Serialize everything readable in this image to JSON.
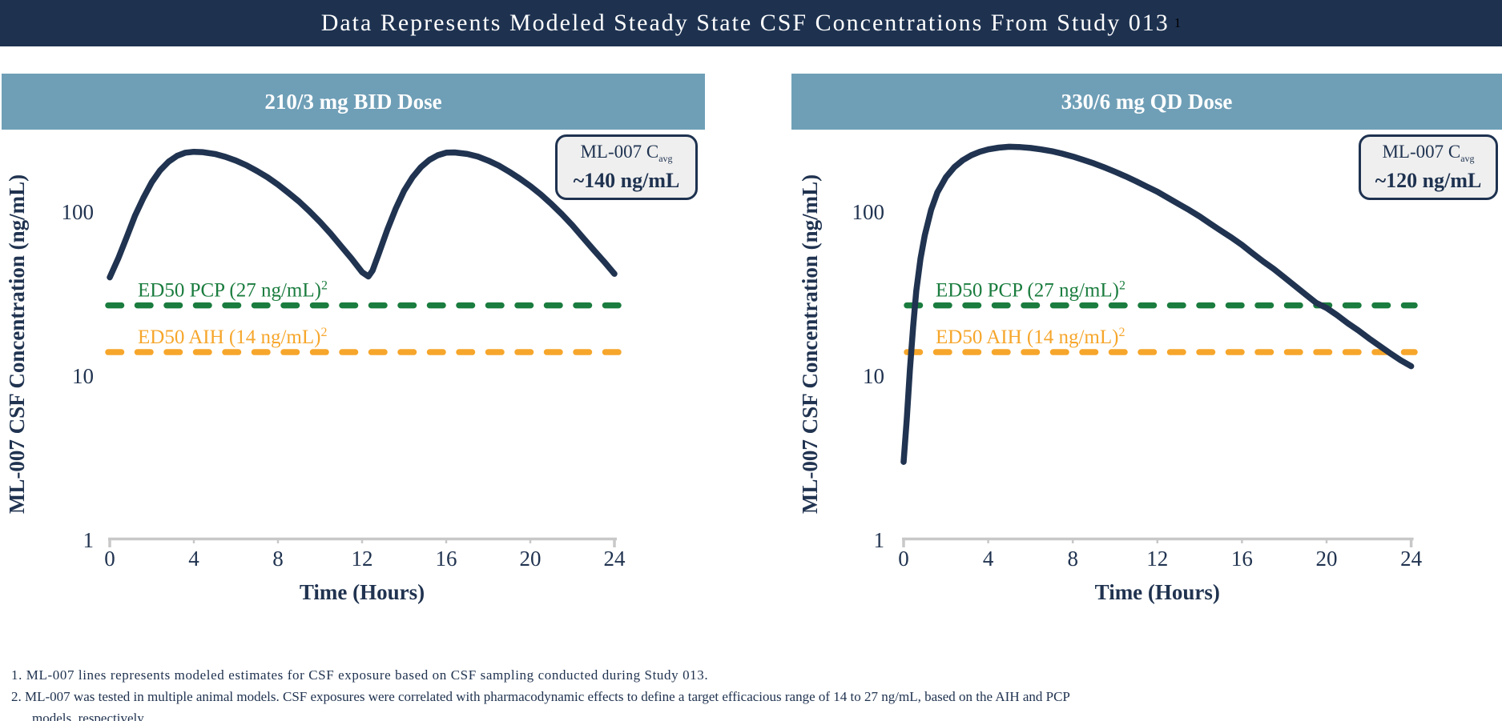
{
  "title": {
    "text": "Data Represents Modeled Steady State CSF Concentrations From Study 013",
    "superscript": "1"
  },
  "colors": {
    "navy": "#203350",
    "title_bar_bg": "#1e3250",
    "panel_header_bg": "#6f9fb7",
    "green": "#1a7c3e",
    "orange": "#f6a62b",
    "axis_gray": "#c8c8c8",
    "legend_bg": "#efefef",
    "white": "#ffffff"
  },
  "footnotes": {
    "note1": "1. ML-007 lines represents modeled estimates for CSF exposure based on CSF sampling conducted during Study 013.",
    "note2_line1": "2. ML-007 was tested in multiple animal models. CSF exposures were correlated with pharmacodynamic effects to define a target efficacious range of 14 to 27 ng/mL, based on the AIH and PCP",
    "note2_line2": "models, respectively."
  },
  "chart_data": [
    {
      "type": "line",
      "panel_title": "210/3 mg BID Dose",
      "x_label": "Time (Hours)",
      "y_label": "ML-007 CSF Concentration (ng/mL)",
      "x_ticks": [
        0,
        4,
        8,
        12,
        16,
        20,
        24
      ],
      "y_ticks": [
        100,
        10,
        1
      ],
      "y_scale": "log",
      "xlim": [
        0,
        24
      ],
      "ylim": [
        1,
        400
      ],
      "grid": false,
      "legend": {
        "line1_prefix": "ML-007 C",
        "line1_sub": "avg",
        "line2": "~140 ng/mL",
        "position": "top-right"
      },
      "cavg_ng_ml": 140,
      "thresholds": [
        {
          "label": "ED50 PCP (27 ng/mL)",
          "label_sup": "2",
          "value": 27,
          "color": "#1a7c3e"
        },
        {
          "label": "ED50 AIH (14 ng/mL)",
          "label_sup": "2",
          "value": 14,
          "color": "#f6a62b"
        }
      ],
      "series": [
        {
          "name": "ML-007 modeled CSF concentration",
          "color": "#203350",
          "points": [
            [
              0,
              40
            ],
            [
              0.4,
              52
            ],
            [
              0.8,
              70
            ],
            [
              1.2,
              95
            ],
            [
              1.6,
              122
            ],
            [
              2,
              152
            ],
            [
              2.4,
              180
            ],
            [
              2.8,
              203
            ],
            [
              3.2,
              220
            ],
            [
              3.6,
              230
            ],
            [
              4,
              233
            ],
            [
              4.4,
              232
            ],
            [
              5,
              226
            ],
            [
              5.5,
              217
            ],
            [
              6,
              206
            ],
            [
              6.5,
              193
            ],
            [
              7,
              178
            ],
            [
              7.5,
              163
            ],
            [
              8,
              147
            ],
            [
              8.5,
              131
            ],
            [
              9,
              116
            ],
            [
              9.5,
              101
            ],
            [
              10,
              87
            ],
            [
              10.5,
              74
            ],
            [
              11,
              62
            ],
            [
              11.5,
              52
            ],
            [
              12,
              43
            ],
            [
              12.3,
              40.5
            ],
            [
              12.5,
              44
            ],
            [
              12.8,
              56
            ],
            [
              13.2,
              78
            ],
            [
              13.6,
              105
            ],
            [
              14,
              135
            ],
            [
              14.4,
              163
            ],
            [
              14.8,
              188
            ],
            [
              15.2,
              208
            ],
            [
              15.6,
              222
            ],
            [
              16,
              230
            ],
            [
              16.4,
              231
            ],
            [
              17,
              226
            ],
            [
              17.5,
              218
            ],
            [
              18,
              206
            ],
            [
              18.5,
              192
            ],
            [
              19,
              176
            ],
            [
              19.5,
              160
            ],
            [
              20,
              144
            ],
            [
              20.5,
              128
            ],
            [
              21,
              112
            ],
            [
              21.5,
              97
            ],
            [
              22,
              83
            ],
            [
              22.5,
              70
            ],
            [
              23,
              59
            ],
            [
              23.5,
              50
            ],
            [
              24,
              42
            ]
          ]
        }
      ]
    },
    {
      "type": "line",
      "panel_title": "330/6 mg QD Dose",
      "x_label": "Time (Hours)",
      "y_label": "ML-007 CSF Concentration (ng/mL)",
      "x_ticks": [
        0,
        4,
        8,
        12,
        16,
        20,
        24
      ],
      "y_ticks": [
        100,
        10,
        1
      ],
      "y_scale": "log",
      "xlim": [
        0,
        24
      ],
      "ylim": [
        1,
        400
      ],
      "grid": false,
      "legend": {
        "line1_prefix": "ML-007 C",
        "line1_sub": "avg",
        "line2": "~120 ng/mL",
        "position": "top-right"
      },
      "cavg_ng_ml": 120,
      "thresholds": [
        {
          "label": "ED50 PCP (27 ng/mL)",
          "label_sup": "2",
          "value": 27,
          "color": "#1a7c3e"
        },
        {
          "label": "ED50 AIH (14 ng/mL)",
          "label_sup": "2",
          "value": 14,
          "color": "#f6a62b"
        }
      ],
      "series": [
        {
          "name": "ML-007 modeled CSF concentration",
          "color": "#203350",
          "points": [
            [
              0,
              3
            ],
            [
              0.15,
              5.5
            ],
            [
              0.3,
              11
            ],
            [
              0.45,
              20
            ],
            [
              0.6,
              33
            ],
            [
              0.8,
              52
            ],
            [
              1,
              72
            ],
            [
              1.3,
              103
            ],
            [
              1.6,
              132
            ],
            [
              2,
              163
            ],
            [
              2.4,
              188
            ],
            [
              2.8,
              207
            ],
            [
              3.2,
              222
            ],
            [
              3.6,
              233
            ],
            [
              4,
              241
            ],
            [
              4.5,
              247
            ],
            [
              5,
              250
            ],
            [
              5.5,
              249
            ],
            [
              6,
              246
            ],
            [
              6.5,
              241
            ],
            [
              7,
              235
            ],
            [
              7.5,
              227
            ],
            [
              8,
              218
            ],
            [
              8.5,
              208
            ],
            [
              9,
              198
            ],
            [
              9.5,
              187
            ],
            [
              10,
              176
            ],
            [
              10.5,
              165
            ],
            [
              11,
              154
            ],
            [
              11.5,
              143
            ],
            [
              12,
              133
            ],
            [
              12.5,
              122
            ],
            [
              13,
              112
            ],
            [
              13.5,
              103
            ],
            [
              14,
              94
            ],
            [
              14.5,
              85
            ],
            [
              15,
              77
            ],
            [
              15.5,
              70
            ],
            [
              16,
              63
            ],
            [
              16.5,
              56
            ],
            [
              17,
              50
            ],
            [
              17.5,
              45
            ],
            [
              18,
              40
            ],
            [
              18.5,
              35.5
            ],
            [
              19,
              31.5
            ],
            [
              19.5,
              28
            ],
            [
              20,
              26
            ],
            [
              20.5,
              23.5
            ],
            [
              21,
              21
            ],
            [
              21.5,
              19
            ],
            [
              22,
              17
            ],
            [
              22.5,
              15.3
            ],
            [
              23,
              13.8
            ],
            [
              23.5,
              12.5
            ],
            [
              24,
              11.5
            ]
          ]
        }
      ]
    }
  ]
}
